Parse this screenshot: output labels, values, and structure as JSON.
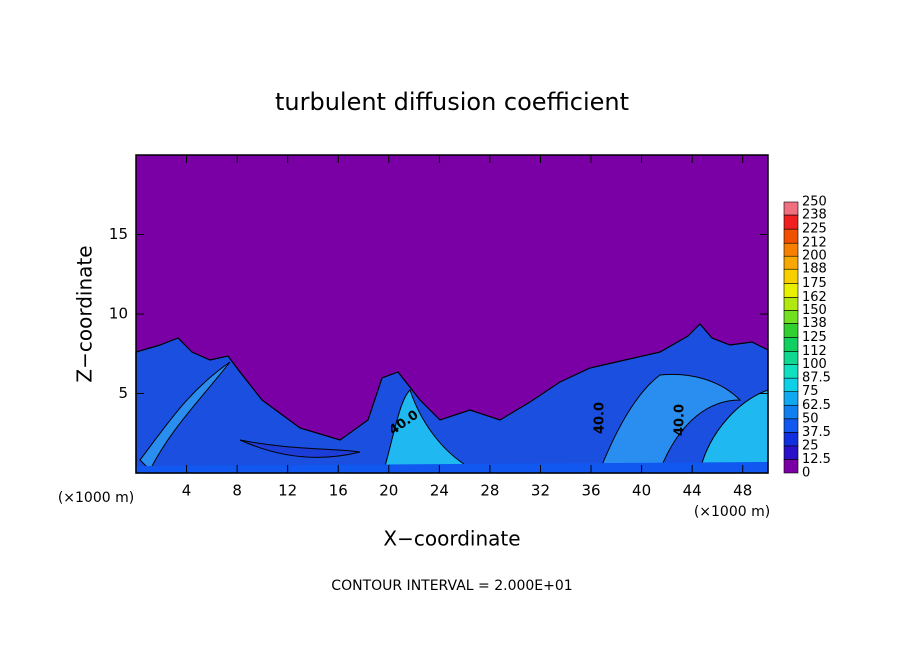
{
  "chart_data": {
    "type": "contour",
    "title": "turbulent diffusion coefficient",
    "xlabel": "X−coordinate",
    "ylabel": "Z−coordinate",
    "x_unit_label": "(×1000 m)",
    "y_unit_label": "(×1000 m)",
    "footnote": "CONTOUR INTERVAL = 2.000E+01",
    "xlim": [
      0,
      50
    ],
    "ylim": [
      0,
      20
    ],
    "xticks": [
      4,
      8,
      12,
      16,
      20,
      24,
      28,
      32,
      36,
      40,
      44,
      48
    ],
    "yticks": [
      5,
      10,
      15
    ],
    "contour_labels": [
      {
        "value": 40,
        "label": "40.0"
      },
      {
        "value": 40,
        "label": "40.0"
      },
      {
        "value": 40,
        "label": "40.0"
      }
    ],
    "colorbar": {
      "levels": [
        0,
        12.5,
        25,
        37.5,
        50,
        62.5,
        75,
        87.5,
        100,
        112,
        125,
        138,
        150,
        162,
        175,
        188,
        200,
        212,
        225,
        238,
        250
      ],
      "colors": [
        "#7a00a6",
        "#2a10c8",
        "#1030e0",
        "#1058f0",
        "#1080f0",
        "#10a8f0",
        "#10d0e8",
        "#10e0c0",
        "#10d890",
        "#10d060",
        "#30d030",
        "#70e020",
        "#b0e810",
        "#e8f000",
        "#f8d000",
        "#f8a800",
        "#f88000",
        "#f05000",
        "#f02020",
        "#f07080"
      ]
    }
  }
}
